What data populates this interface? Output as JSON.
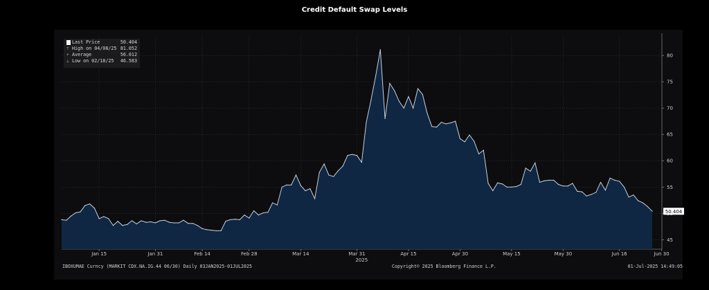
{
  "title": "Credit Default Swap Levels",
  "legend": {
    "last": {
      "label": "Last Price",
      "value": "50.404"
    },
    "high": {
      "label": "High on 04/08/25",
      "value": "81.052"
    },
    "avg": {
      "label": "Average",
      "value": "56.012"
    },
    "low": {
      "label": "Low on 02/18/25",
      "value": "46.583"
    }
  },
  "footer": {
    "security": "IBOXUMAE Curncy (MARKIT CDX.NA.IG.44 06/30)  Daily 03JAN2025-01JUL2025",
    "copyright": "Copyright© 2025 Bloomberg Finance L.P.",
    "timestamp": "01-Jul-2025 14:49:05"
  },
  "colors": {
    "area": "#0f2742",
    "line": "#c8d2de",
    "grid": "#3a3a3a",
    "label_box": "#ffffff"
  },
  "chart_data": {
    "type": "area",
    "title": "Credit Default Swap Levels",
    "x_tick_labels": [
      "Jan 15",
      "Jan 31",
      "Feb 14",
      "Feb 28",
      "Mar 14",
      "Mar 31",
      "Apr 15",
      "Apr 30",
      "May 15",
      "May 30",
      "Jun 16",
      "Jun 30"
    ],
    "x_tick_index": [
      8,
      20,
      30,
      40,
      51,
      63,
      74,
      85,
      96,
      107,
      119,
      128
    ],
    "year_label": "2025",
    "y_tick_labels": [
      "45",
      "50",
      "55",
      "60",
      "65",
      "70",
      "75",
      "80"
    ],
    "y_ticks": [
      45,
      50,
      55,
      60,
      65,
      70,
      75,
      80
    ],
    "ylim": [
      43.2,
      83.7
    ],
    "y_axis_side": "right",
    "grid": true,
    "legend_position": "top-left",
    "last_value_label": "50.404",
    "series": [
      {
        "name": "Last Price",
        "values": [
          48.8,
          48.7,
          49.5,
          50.1,
          50.3,
          51.5,
          51.8,
          51.0,
          49.0,
          49.4,
          49.0,
          47.7,
          48.5,
          47.7,
          47.9,
          48.6,
          48.0,
          48.6,
          48.3,
          48.4,
          48.2,
          48.6,
          48.7,
          48.3,
          48.2,
          48.2,
          48.7,
          48.1,
          48.1,
          47.7,
          47.1,
          46.9,
          46.8,
          46.7,
          46.7,
          48.5,
          48.8,
          48.9,
          48.8,
          49.7,
          49.1,
          50.5,
          49.7,
          50.1,
          50.2,
          52.0,
          51.6,
          55.0,
          55.4,
          55.4,
          57.3,
          55.3,
          54.3,
          54.7,
          52.8,
          57.8,
          59.4,
          57.3,
          57.0,
          58.1,
          59.0,
          61.0,
          61.2,
          61.0,
          59.7,
          67.3,
          71.5,
          76.1,
          81.1,
          68.0,
          74.7,
          73.3,
          71.3,
          70.0,
          72.2,
          70.0,
          73.7,
          72.6,
          69.0,
          66.5,
          66.4,
          67.3,
          67.0,
          67.2,
          67.5,
          64.2,
          63.6,
          64.9,
          63.7,
          61.3,
          62.0,
          55.7,
          54.3,
          55.8,
          55.6,
          55.0,
          55.0,
          55.1,
          55.5,
          58.6,
          58.0,
          59.6,
          55.9,
          56.2,
          56.3,
          56.3,
          55.5,
          55.2,
          55.2,
          55.7,
          54.2,
          54.1,
          53.3,
          53.6,
          54.0,
          55.9,
          54.4,
          56.7,
          56.3,
          56.1,
          55.0,
          53.1,
          53.5,
          52.4,
          52.0,
          51.3,
          50.4
        ]
      }
    ]
  }
}
